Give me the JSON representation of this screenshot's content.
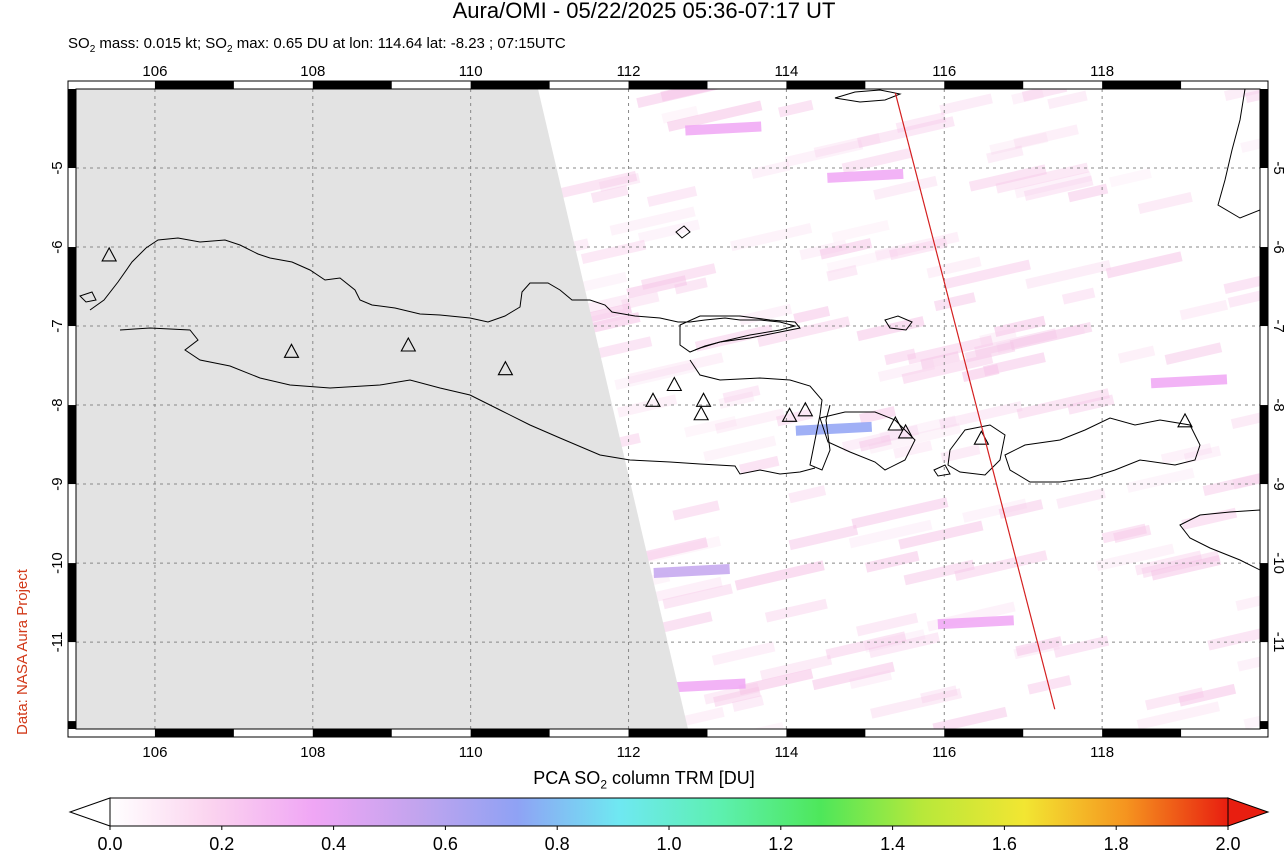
{
  "header": {
    "title": "Aura/OMI - 05/22/2025 05:36-07:17 UT",
    "subtitle_prefix": "SO",
    "subtitle_sub1": "2",
    "subtitle_mid": " mass: 0.015 kt; SO",
    "subtitle_sub2": "2",
    "subtitle_suffix": " max: 0.65 DU at lon: 114.64 lat: -8.23 ; 07:15UTC"
  },
  "credit": "Data: NASA Aura Project",
  "map": {
    "lon_range": [
      105,
      120
    ],
    "lat_range": [
      -12.1,
      -4.0
    ],
    "lon_ticks": [
      106,
      108,
      110,
      112,
      114,
      116,
      118
    ],
    "lat_ticks": [
      -5,
      -6,
      -7,
      -8,
      -9,
      -10,
      -11
    ],
    "lon_labels": [
      "106",
      "108",
      "110",
      "112",
      "114",
      "116",
      "118"
    ],
    "lat_labels": [
      "-5",
      "-6",
      "-7",
      "-8",
      "-9",
      "-10",
      "-11"
    ],
    "no_data_color": "#e3e3e3",
    "coast_color": "#000000",
    "track_color": "#d42020",
    "track": [
      [
        115.38,
        -4.05
      ],
      [
        117.4,
        -11.85
      ]
    ],
    "volcanoes": [
      [
        105.42,
        -6.1
      ],
      [
        107.73,
        -7.32
      ],
      [
        109.21,
        -7.24
      ],
      [
        110.44,
        -7.54
      ],
      [
        112.31,
        -7.94
      ],
      [
        112.58,
        -7.74
      ],
      [
        112.95,
        -7.94
      ],
      [
        112.92,
        -8.11
      ],
      [
        114.04,
        -8.13
      ],
      [
        114.24,
        -8.06
      ],
      [
        115.38,
        -8.24
      ],
      [
        115.51,
        -8.34
      ],
      [
        116.47,
        -8.42
      ],
      [
        119.05,
        -8.2
      ]
    ],
    "so2_swaths": [
      {
        "lon": 114.6,
        "lat": -8.3,
        "level": 0.65
      },
      {
        "lon": 112.8,
        "lat": -10.1,
        "level": 0.55
      },
      {
        "lon": 113.0,
        "lat": -11.55,
        "level": 0.45
      },
      {
        "lon": 115.0,
        "lat": -5.1,
        "level": 0.4
      },
      {
        "lon": 119.1,
        "lat": -7.7,
        "level": 0.4
      },
      {
        "lon": 116.4,
        "lat": -10.75,
        "level": 0.35
      },
      {
        "lon": 113.2,
        "lat": -4.5,
        "level": 0.3
      }
    ]
  },
  "colorbar": {
    "title_prefix": "PCA SO",
    "title_sub": "2",
    "title_suffix": " column TRM [DU]",
    "ticks": [
      "0.0",
      "0.2",
      "0.4",
      "0.6",
      "0.8",
      "1.0",
      "1.2",
      "1.4",
      "1.6",
      "1.8",
      "2.0"
    ],
    "stops": [
      "#ffffff",
      "#fbd3ef",
      "#f0a6f5",
      "#c3a4ee",
      "#8fa2f4",
      "#6fe8f2",
      "#5df0b0",
      "#4ee75a",
      "#b8e83a",
      "#f2e632",
      "#f5941f",
      "#e81e10"
    ]
  }
}
